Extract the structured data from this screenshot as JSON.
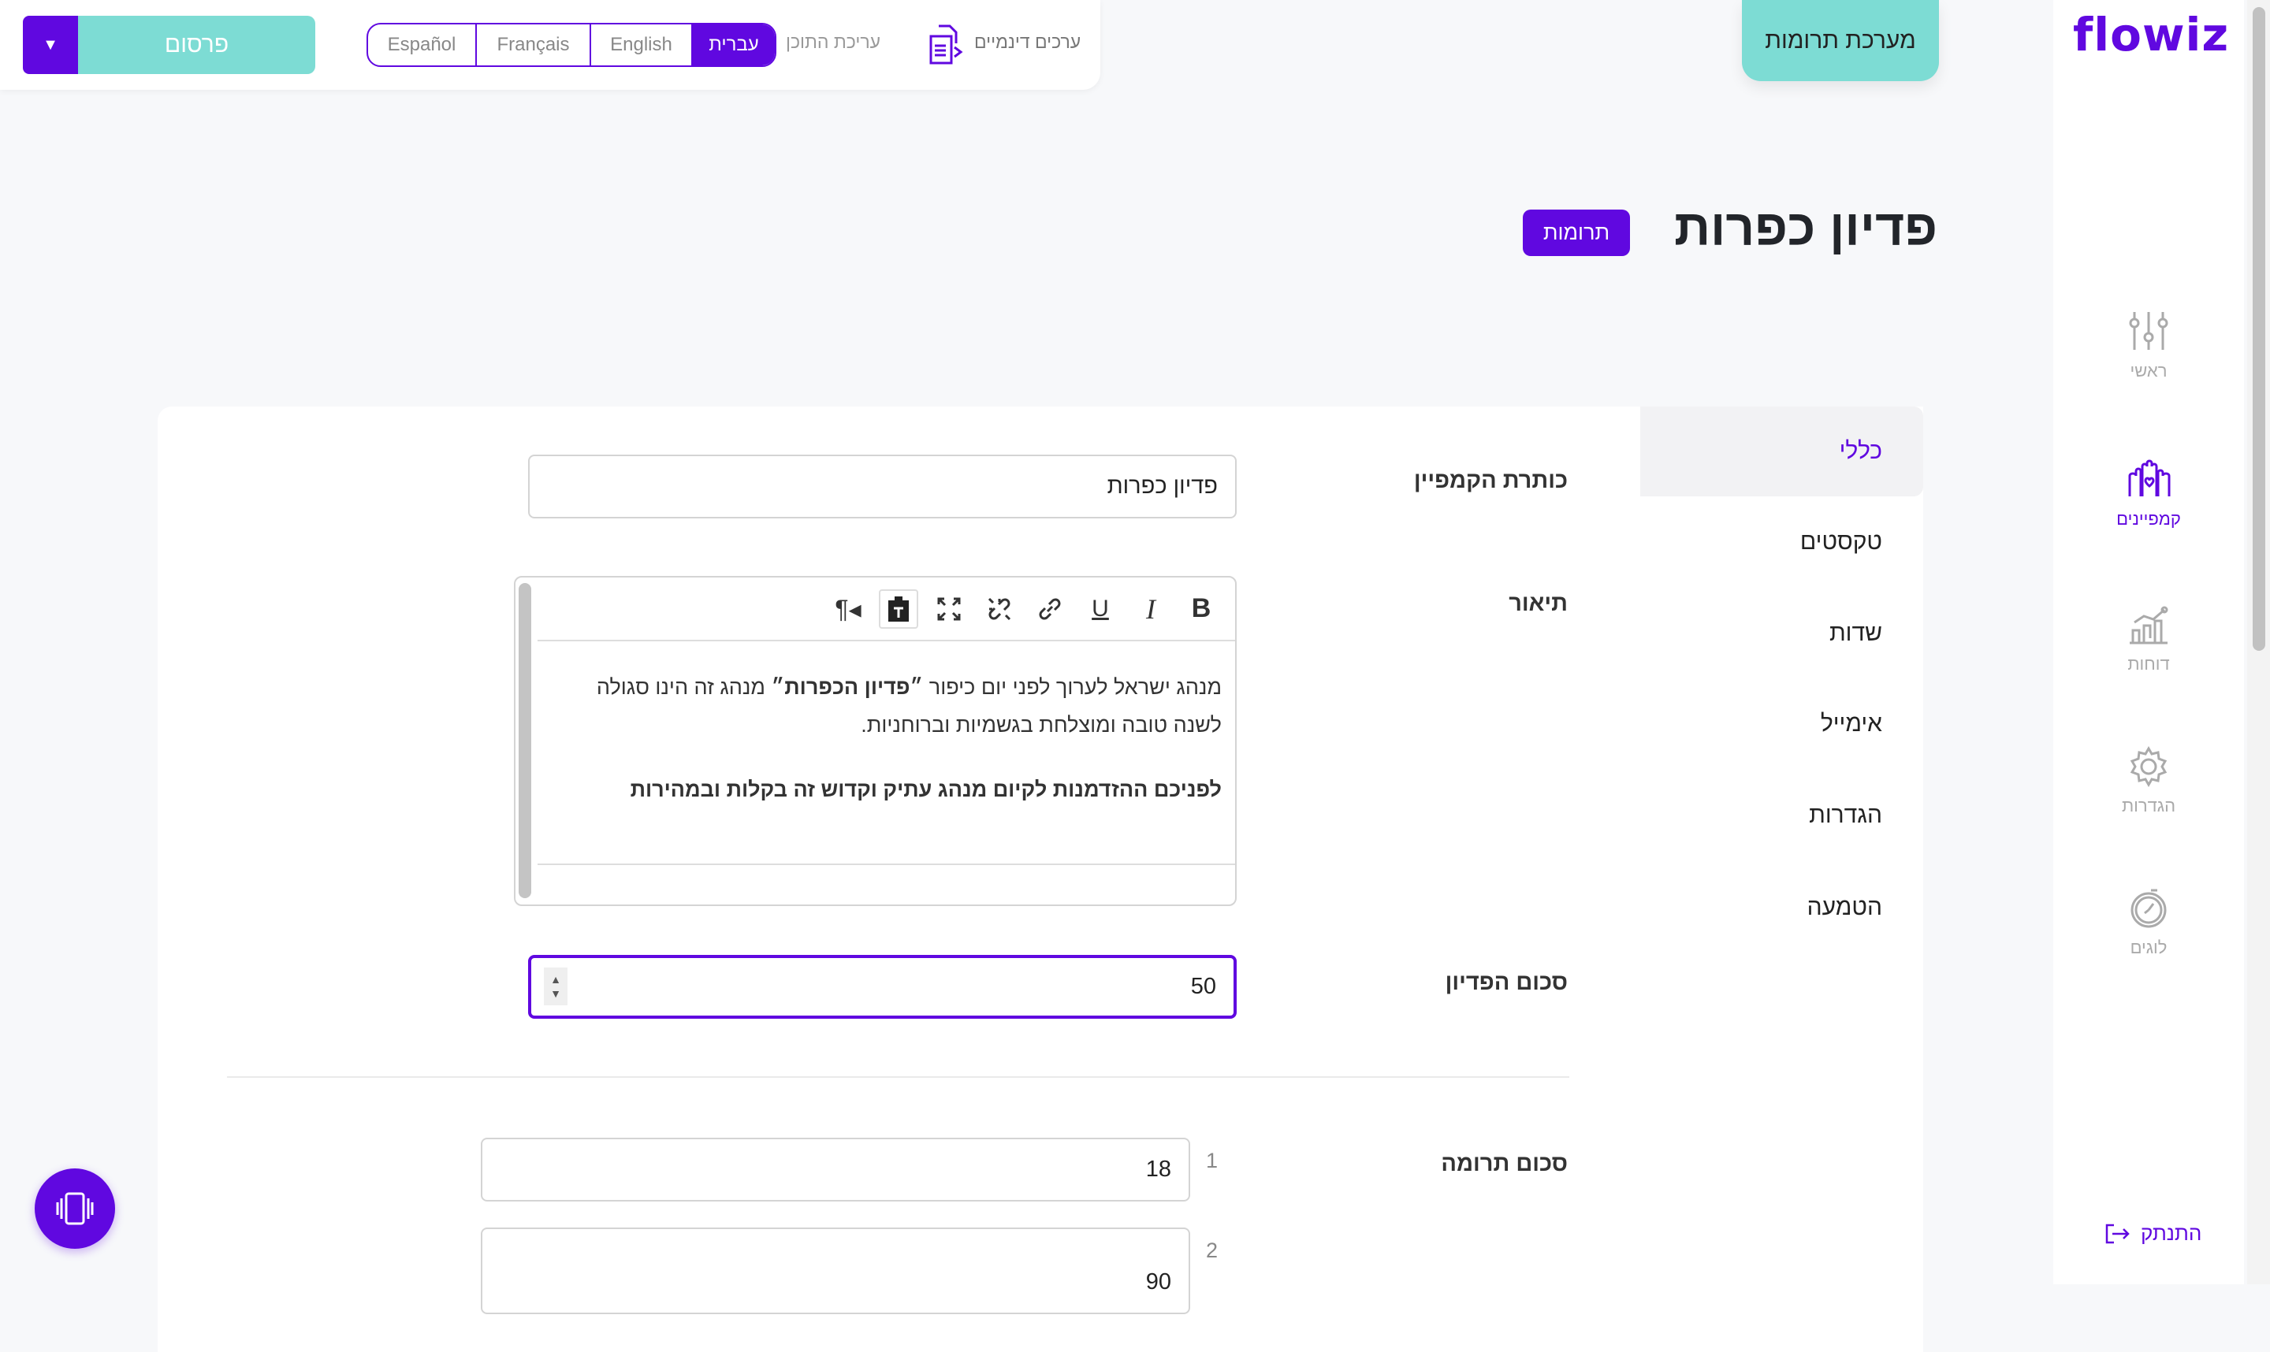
{
  "topbar": {
    "publish_label": "פרסום",
    "languages": [
      "Español",
      "Français",
      "English",
      "עברית"
    ],
    "active_language": "עברית",
    "content_edit_label": "עריכת התוכן",
    "dynamic_values_label": "ערכים דינמיים"
  },
  "system_tab": "מערכת תרומות",
  "header": {
    "title": "פדיון כפרות",
    "badge": "תרומות"
  },
  "sidebar": {
    "logo": "flowiz",
    "items": [
      {
        "label": "ראשי",
        "icon": "sliders-icon"
      },
      {
        "label": "קמפיינים",
        "icon": "hands-heart-icon",
        "active": true
      },
      {
        "label": "דוחות",
        "icon": "chart-icon"
      },
      {
        "label": "הגדרות",
        "icon": "gear-icon"
      },
      {
        "label": "לוגים",
        "icon": "clock-icon"
      }
    ],
    "logout": "התנתק"
  },
  "tabs": [
    {
      "label": "כללי",
      "active": true
    },
    {
      "label": "טקסטים"
    },
    {
      "label": "שדות"
    },
    {
      "label": "אימייל"
    },
    {
      "label": "הגדרות"
    },
    {
      "label": "הטמעה"
    }
  ],
  "form": {
    "campaign_title_label": "כותרת הקמפיין",
    "campaign_title_value": "פדיון כפרות",
    "description_label": "תיאור",
    "description": {
      "line1_a": "מנהג ישראל לערוך לפני יום כיפור ",
      "line1_bold": "״פדיון הכפרות״",
      "line1_b": " מנהג זה הינו סגולה לשנה טובה ומוצלחת בגשמיות וברוחניות.",
      "line2": "לפניכם ההזדמנות לקיום מנהג עתיק וקדוש זה בקלות ובמהירות"
    },
    "redemption_amount_label": "סכום הפדיון",
    "redemption_amount_value": "50",
    "donation_amount_label": "סכום תרומה",
    "donation_amounts": [
      {
        "index": "1",
        "value": "18"
      },
      {
        "index": "2",
        "value": "90"
      }
    ]
  },
  "colors": {
    "brand": "#6008e0",
    "teal": "#7ddcd4"
  }
}
